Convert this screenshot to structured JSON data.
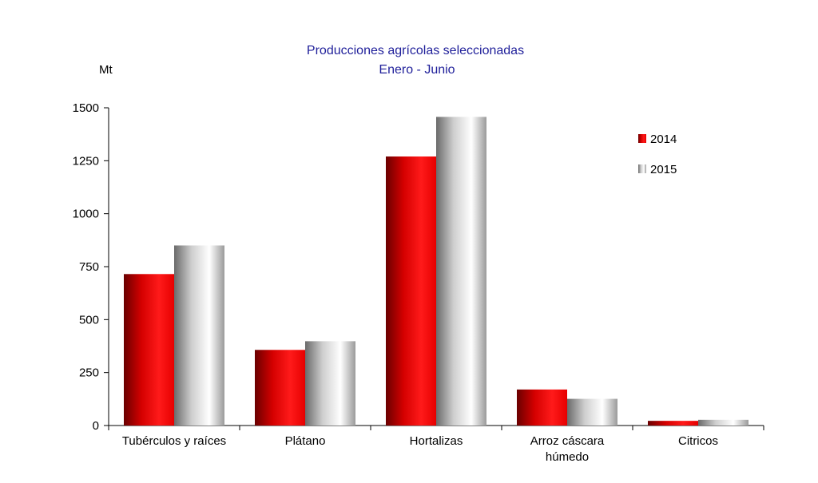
{
  "chart_data": {
    "type": "bar",
    "title": "Producciones agrícolas seleccionadas",
    "subtitle": "Enero - Junio",
    "ylabel": "Mt",
    "xlabel": "",
    "ylim": [
      0,
      1500
    ],
    "yticks": [
      0,
      250,
      500,
      750,
      1000,
      1250,
      1500
    ],
    "ytick_labels": [
      "0",
      "250",
      "500",
      "750",
      "1000",
      "1250",
      "1500"
    ],
    "categories": [
      [
        "Tubérculos y raíces"
      ],
      [
        "Plátano"
      ],
      [
        "Hortalizas"
      ],
      [
        "Arroz cáscara",
        "húmedo"
      ],
      [
        "Citricos"
      ]
    ],
    "series": [
      {
        "name": "2014",
        "values": [
          715,
          357,
          1270,
          170,
          22
        ],
        "color": "#e00000"
      },
      {
        "name": "2015",
        "values": [
          850,
          398,
          1457,
          126,
          27
        ],
        "color": "#b0b0b0"
      }
    ],
    "grid": false,
    "legend": "top-right"
  }
}
